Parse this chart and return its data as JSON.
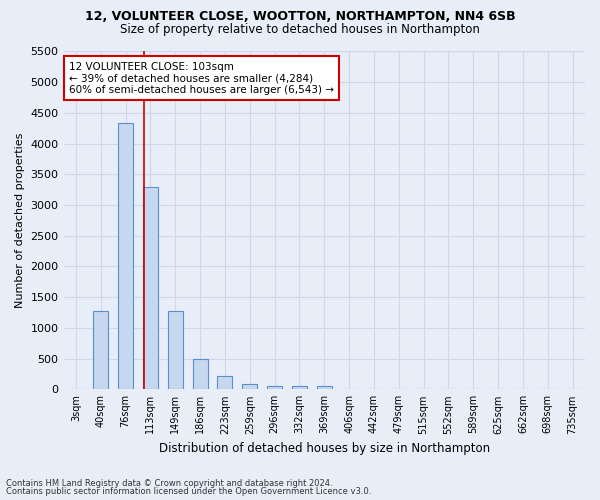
{
  "title1": "12, VOLUNTEER CLOSE, WOOTTON, NORTHAMPTON, NN4 6SB",
  "title2": "Size of property relative to detached houses in Northampton",
  "xlabel": "Distribution of detached houses by size in Northampton",
  "ylabel": "Number of detached properties",
  "footer1": "Contains HM Land Registry data © Crown copyright and database right 2024.",
  "footer2": "Contains public sector information licensed under the Open Government Licence v3.0.",
  "bar_labels": [
    "3sqm",
    "40sqm",
    "76sqm",
    "113sqm",
    "149sqm",
    "186sqm",
    "223sqm",
    "259sqm",
    "296sqm",
    "332sqm",
    "369sqm",
    "406sqm",
    "442sqm",
    "479sqm",
    "515sqm",
    "552sqm",
    "589sqm",
    "625sqm",
    "662sqm",
    "698sqm",
    "735sqm"
  ],
  "bar_values": [
    0,
    1270,
    4330,
    3300,
    1280,
    490,
    220,
    90,
    60,
    55,
    50,
    0,
    0,
    0,
    0,
    0,
    0,
    0,
    0,
    0,
    0
  ],
  "bar_color": "#c5d8f0",
  "bar_edgecolor": "#5b8fc9",
  "ylim": [
    0,
    5500
  ],
  "yticks": [
    0,
    500,
    1000,
    1500,
    2000,
    2500,
    3000,
    3500,
    4000,
    4500,
    5000,
    5500
  ],
  "property_label": "12 VOLUNTEER CLOSE: 103sqm",
  "annotation_line1": "← 39% of detached houses are smaller (4,284)",
  "annotation_line2": "60% of semi-detached houses are larger (6,543) →",
  "vline_x": 2.73,
  "bar_width": 0.6,
  "background_color": "#e8eef8",
  "grid_color": "#d0d8e8",
  "annotation_box_facecolor": "#ffffff",
  "annotation_box_edgecolor": "#cc0000"
}
